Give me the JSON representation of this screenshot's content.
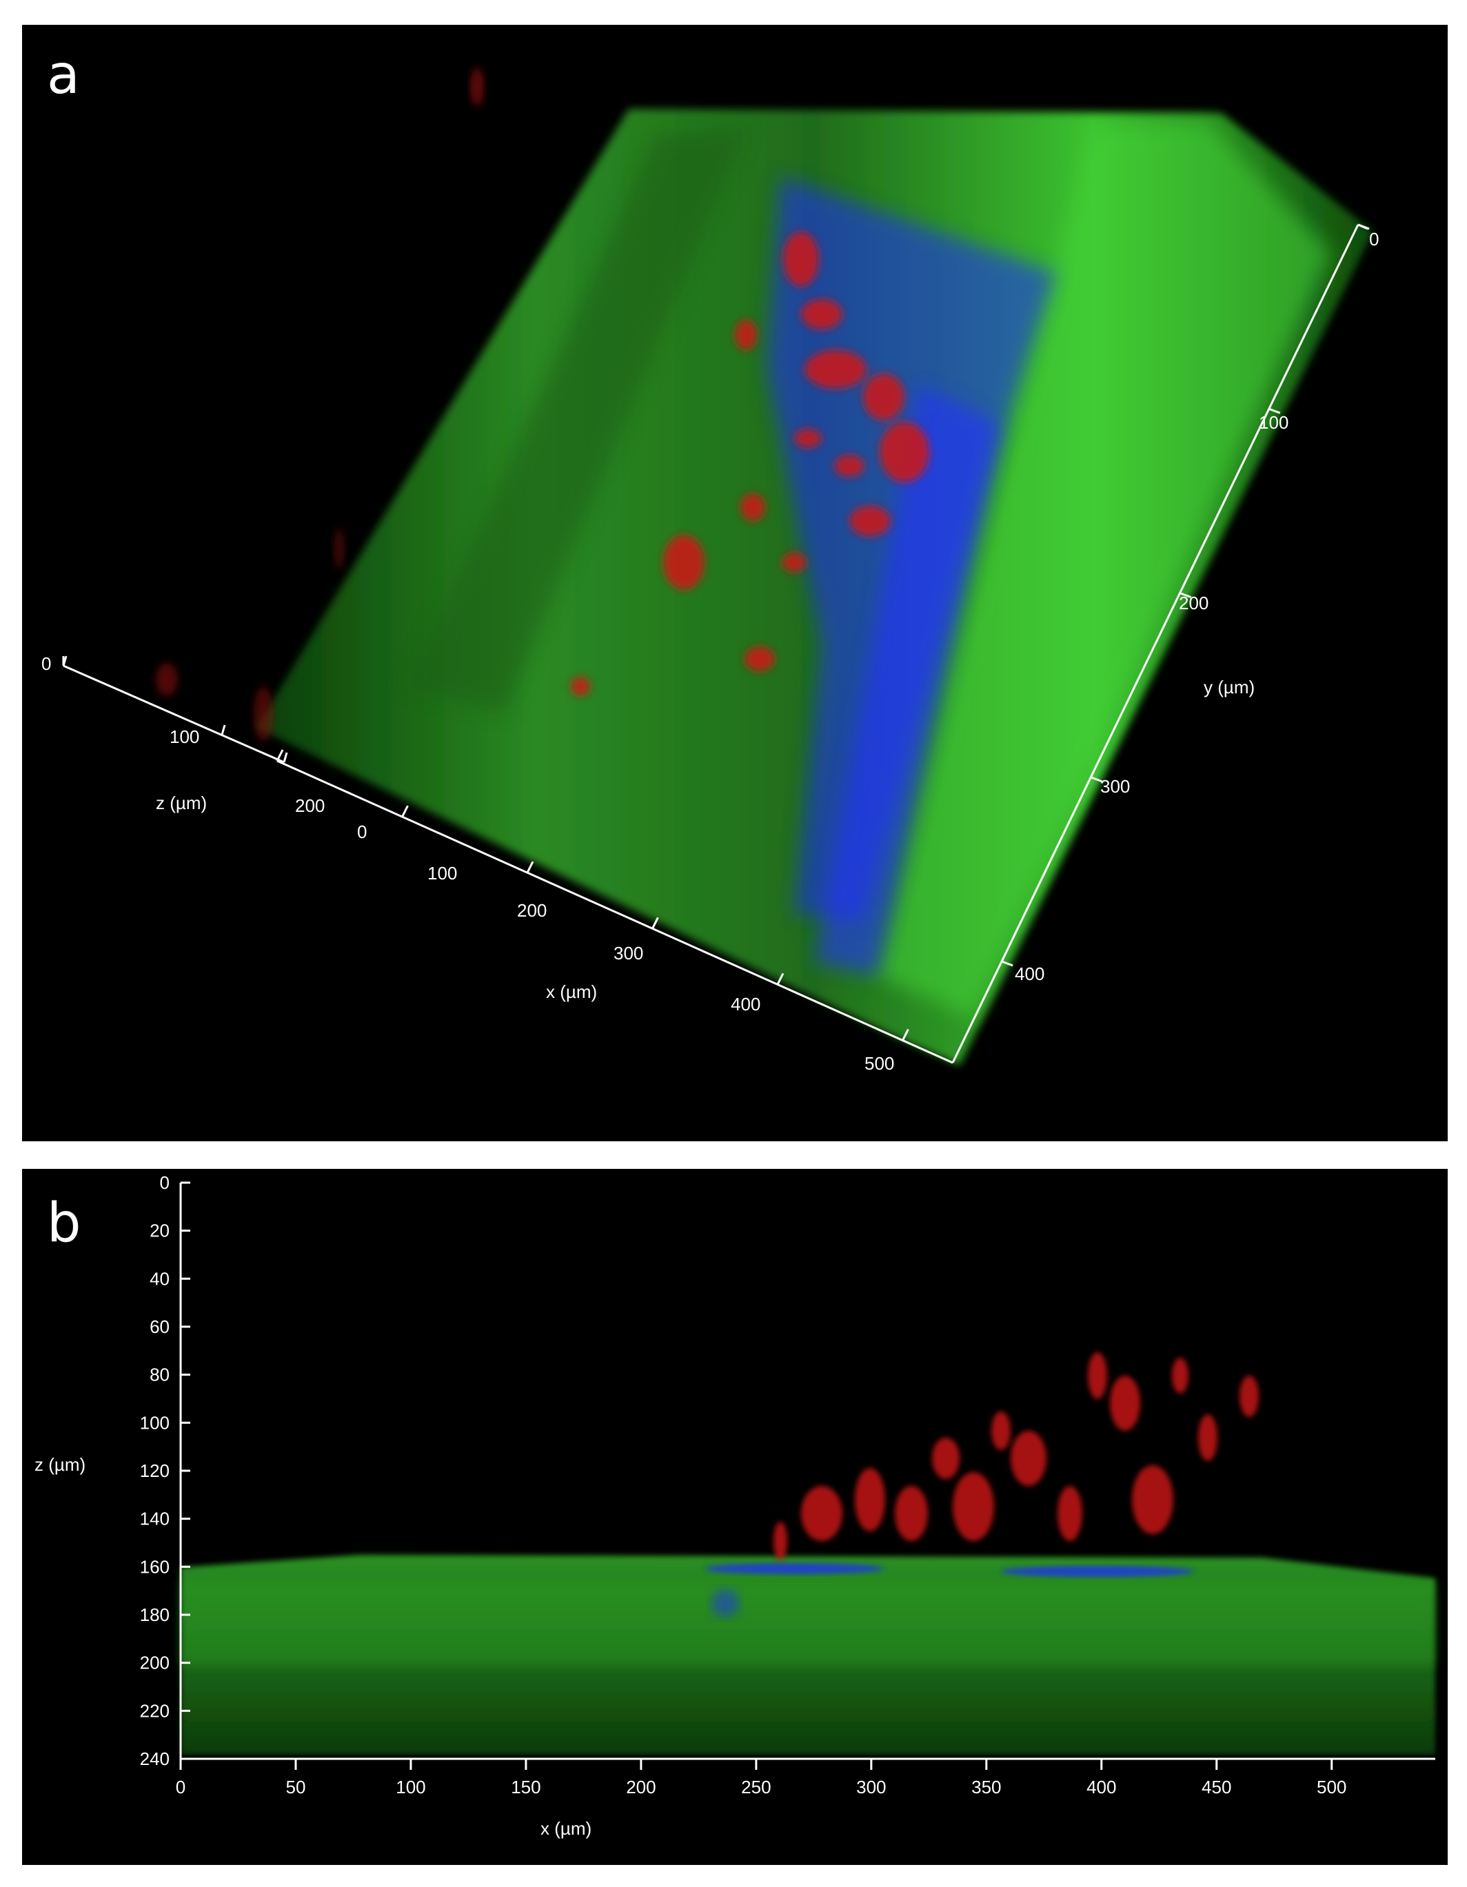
{
  "panels": [
    {
      "letter": "a",
      "axes": {
        "z": {
          "title": "z (µm)",
          "ticks": [
            "0",
            "100",
            "200"
          ]
        },
        "x": {
          "title": "x (µm)",
          "ticks": [
            "0",
            "100",
            "200",
            "300",
            "400",
            "500"
          ]
        },
        "y": {
          "title": "y (µm)",
          "ticks": [
            "0",
            "100",
            "200",
            "300",
            "400"
          ]
        }
      }
    },
    {
      "letter": "b",
      "axes": {
        "z": {
          "title": "z (µm)",
          "ticks": [
            "0",
            "20",
            "40",
            "60",
            "80",
            "100",
            "120",
            "140",
            "160",
            "180",
            "200",
            "220",
            "240"
          ]
        },
        "x": {
          "title": "x (µm)",
          "ticks": [
            "0",
            "50",
            "100",
            "150",
            "200",
            "250",
            "300",
            "350",
            "400",
            "450",
            "500"
          ]
        }
      }
    }
  ],
  "colors": {
    "green_channel": "#2fb82a",
    "blue_channel": "#1a2cff",
    "red_channel": "#d01818",
    "axis": "#ffffff",
    "background": "#000000"
  }
}
